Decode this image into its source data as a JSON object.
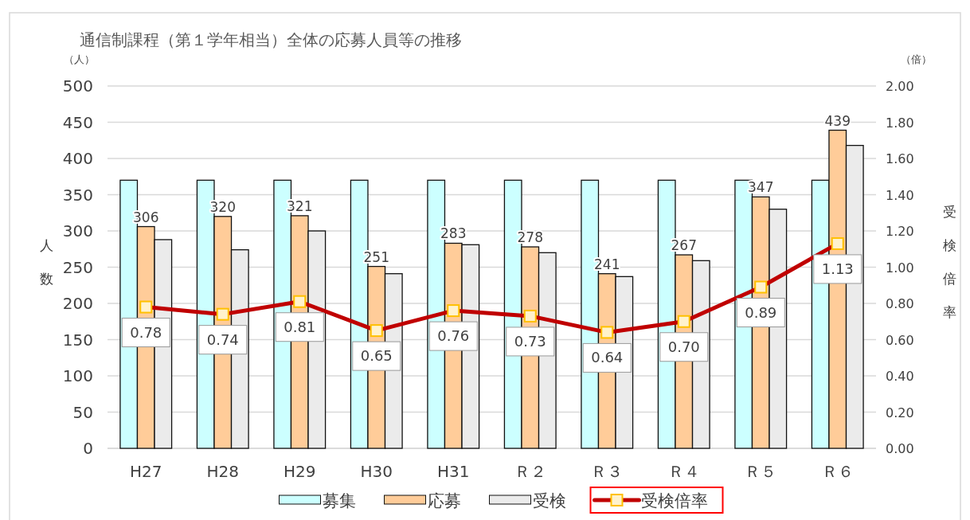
{
  "chart_data": {
    "type": "bar",
    "title": "通信制課程（第１学年相当）全体の応募人員等の推移",
    "categories": [
      "H27",
      "H28",
      "H29",
      "H30",
      "H31",
      "Ｒ２",
      "Ｒ３",
      "Ｒ４",
      "Ｒ５",
      "Ｒ６"
    ],
    "series": [
      {
        "name": "募集",
        "color": "#ccffff",
        "values": [
          370,
          370,
          370,
          370,
          370,
          370,
          370,
          370,
          370,
          370
        ]
      },
      {
        "name": "応募",
        "color": "#ffcc99",
        "values": [
          306,
          320,
          321,
          251,
          283,
          278,
          241,
          267,
          347,
          439
        ],
        "value_labels": [
          "306",
          "320",
          "321",
          "251",
          "283",
          "278",
          "241",
          "267",
          "347",
          "439"
        ]
      },
      {
        "name": "受検",
        "color": "#ebebeb",
        "values": [
          288,
          274,
          300,
          241,
          281,
          270,
          237,
          259,
          330,
          418
        ]
      },
      {
        "name": "受検倍率",
        "type": "line",
        "axis": "y2",
        "color": "#c00000",
        "values": [
          0.78,
          0.74,
          0.81,
          0.65,
          0.76,
          0.73,
          0.64,
          0.7,
          0.89,
          1.13
        ],
        "value_labels": [
          "0.78",
          "0.74",
          "0.81",
          "0.65",
          "0.76",
          "0.73",
          "0.64",
          "0.70",
          "0.89",
          "1.13"
        ]
      }
    ],
    "ylabel": "人数",
    "y2label": "受検倍率",
    "ylim": [
      0,
      500
    ],
    "yticks": [
      0,
      50,
      100,
      150,
      200,
      250,
      300,
      350,
      400,
      450,
      500
    ],
    "y2lim": [
      0,
      2
    ],
    "y2ticks": [
      {
        "value": 0,
        "label": "0.00"
      },
      {
        "value": 0.2,
        "label": "0.20"
      },
      {
        "value": 0.4,
        "label": "0.40"
      },
      {
        "value": 0.6,
        "label": "0.60"
      },
      {
        "value": 0.8,
        "label": "0.80"
      },
      {
        "value": 1,
        "label": "1.00"
      },
      {
        "value": 1.2,
        "label": "1.20"
      },
      {
        "value": 1.4,
        "label": "1.40"
      },
      {
        "value": 1.6,
        "label": "1.60"
      },
      {
        "value": 1.8,
        "label": "1.80"
      },
      {
        "value": 2,
        "label": "2.00"
      }
    ],
    "annotations": [
      "（人）",
      "（倍）"
    ],
    "grid": "y",
    "legend": "bottom",
    "marker": "square",
    "line_style": "solid"
  }
}
